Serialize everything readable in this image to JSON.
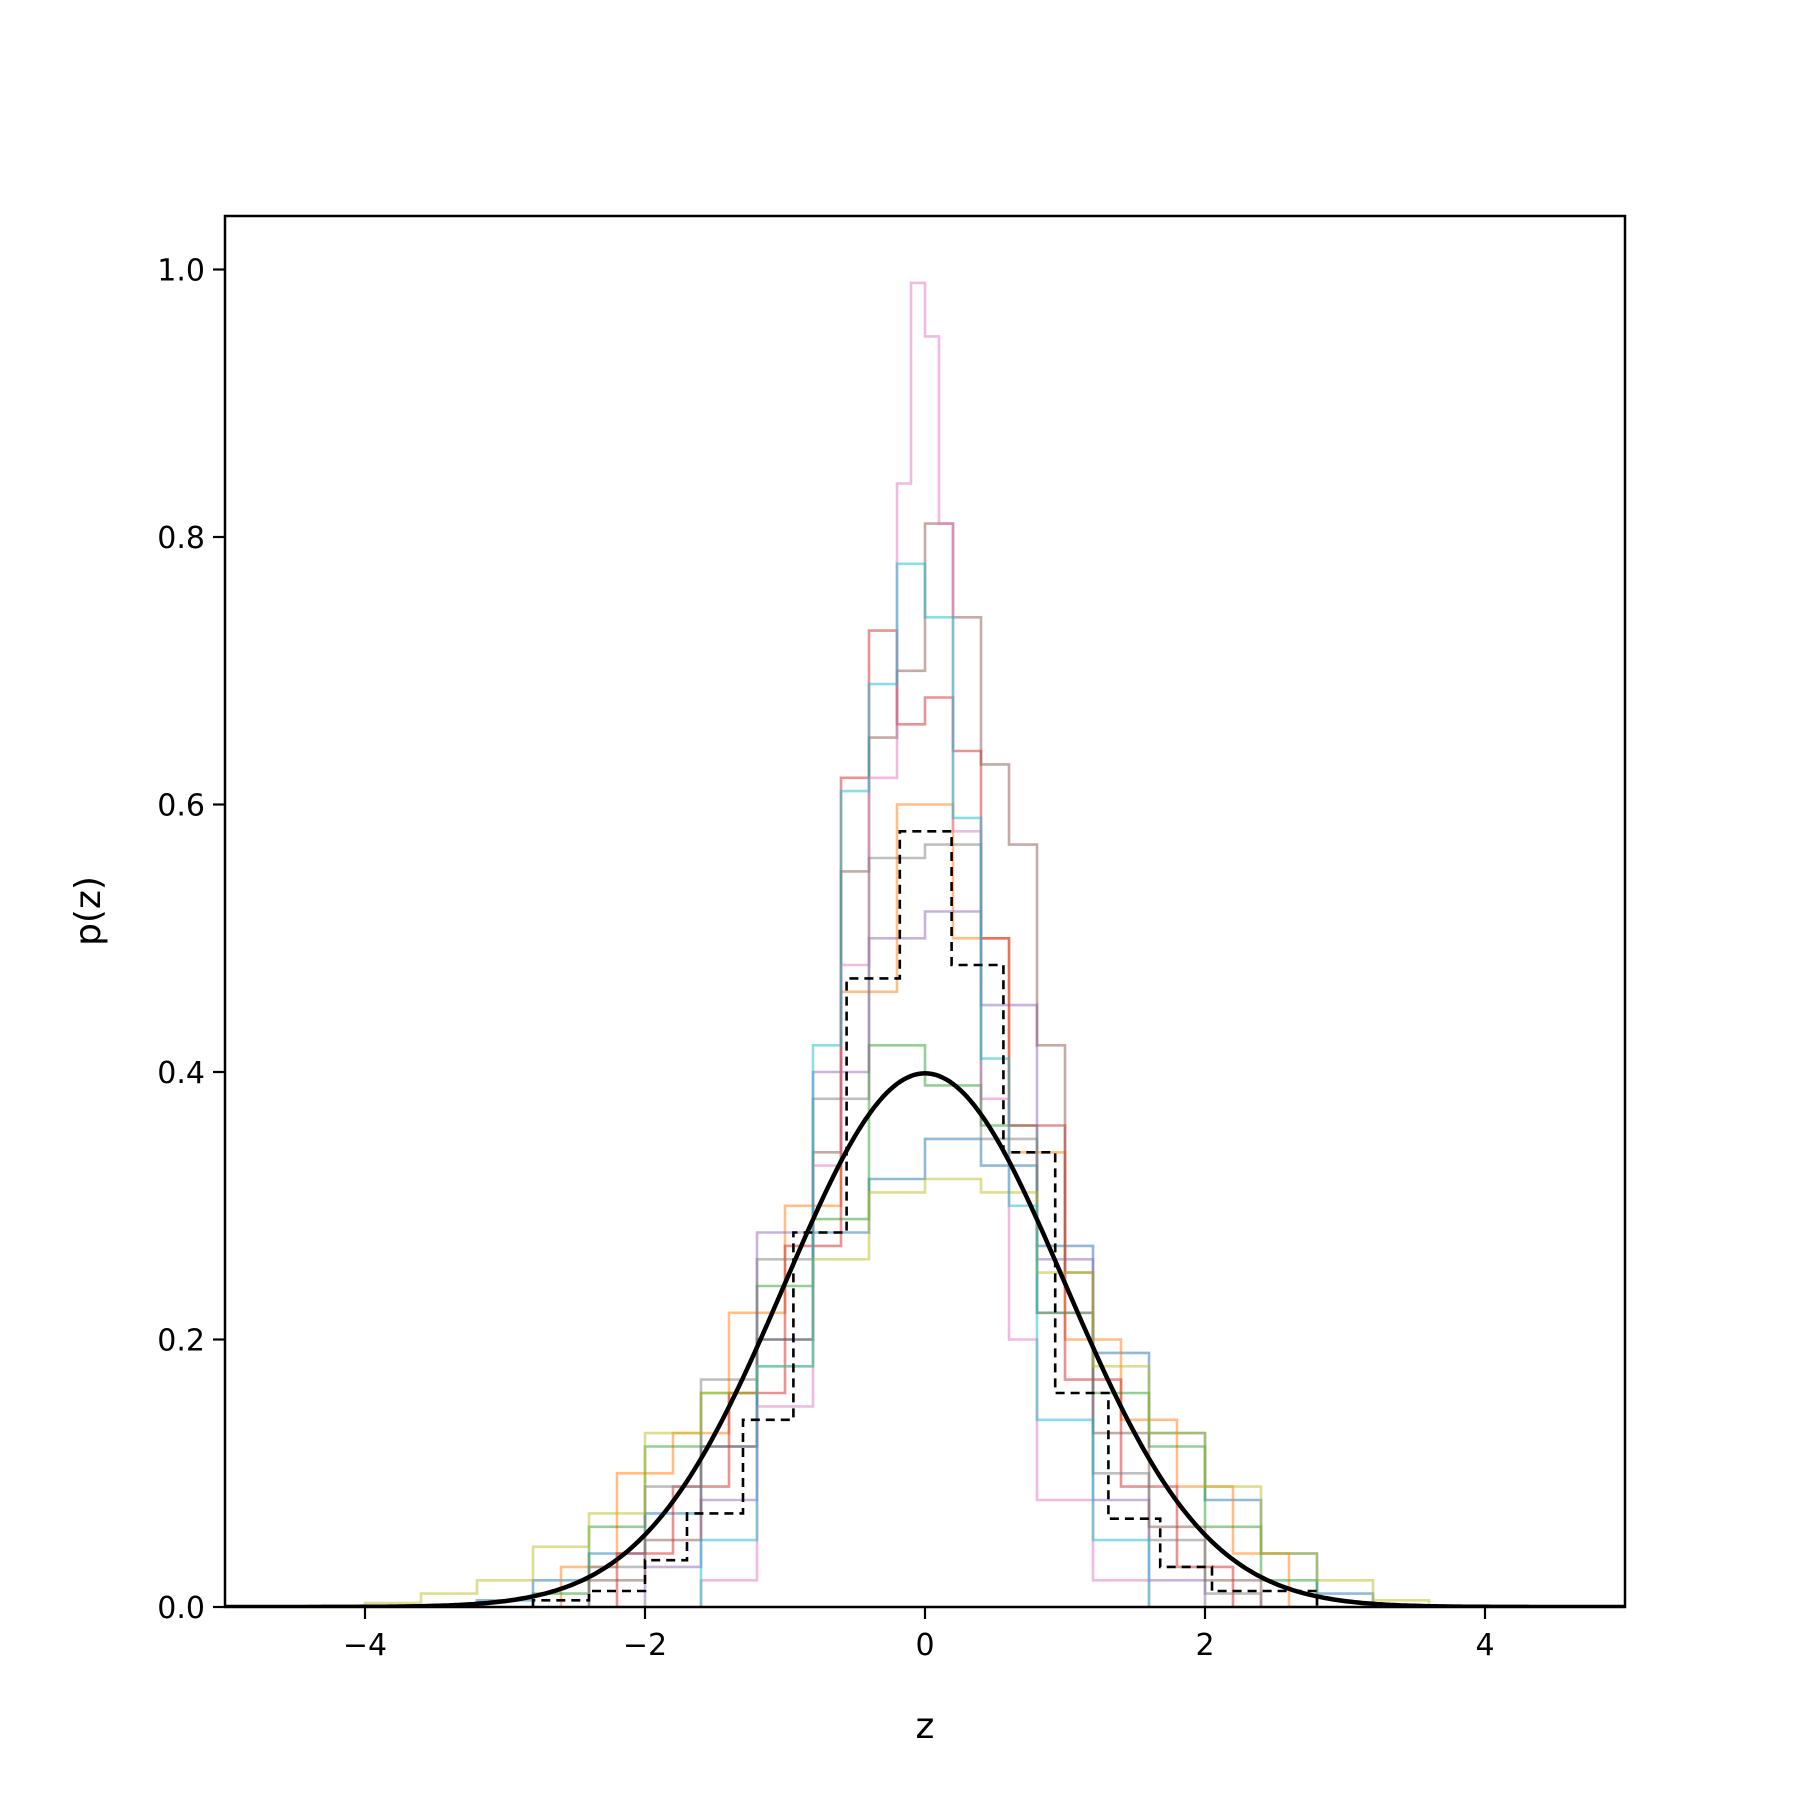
{
  "chart_data": {
    "type": "line",
    "title": "",
    "xlabel": "z",
    "ylabel": "p(z)",
    "xlim": [
      -5,
      5
    ],
    "ylim": [
      0,
      1.04
    ],
    "xticks": [
      -4,
      -2,
      0,
      2,
      4
    ],
    "xtick_labels": [
      "−4",
      "−2",
      "0",
      "2",
      "4"
    ],
    "yticks": [
      0.0,
      0.2,
      0.4,
      0.6,
      0.8,
      1.0
    ],
    "ytick_labels": [
      "0.0",
      "0.2",
      "0.4",
      "0.6",
      "0.8",
      "1.0"
    ],
    "grid": false,
    "legend": "none",
    "histograms": [
      {
        "color": "#1f77b4",
        "edges": [
          -3.2,
          -2.8,
          -2.4,
          -2.0,
          -1.6,
          -1.2,
          -0.8,
          -0.4,
          0.0,
          0.4,
          0.8,
          1.2,
          1.6,
          2.0,
          2.4,
          2.8,
          3.2
        ],
        "values": [
          0.005,
          0.02,
          0.04,
          0.07,
          0.12,
          0.2,
          0.28,
          0.32,
          0.35,
          0.33,
          0.27,
          0.19,
          0.13,
          0.08,
          0.04,
          0.01
        ]
      },
      {
        "color": "#ff7f0e",
        "edges": [
          -2.6,
          -2.2,
          -1.8,
          -1.4,
          -1.0,
          -0.6,
          -0.2,
          0.2,
          0.6,
          1.0,
          1.4,
          1.8,
          2.2,
          2.6
        ],
        "values": [
          0.03,
          0.1,
          0.13,
          0.22,
          0.3,
          0.46,
          0.6,
          0.5,
          0.34,
          0.2,
          0.14,
          0.09,
          0.04
        ]
      },
      {
        "color": "#2ca02c",
        "edges": [
          -2.8,
          -2.4,
          -2.0,
          -1.6,
          -1.2,
          -0.8,
          -0.4,
          0.0,
          0.4,
          0.8,
          1.2,
          1.6,
          2.0,
          2.4,
          2.8
        ],
        "values": [
          0.01,
          0.06,
          0.12,
          0.16,
          0.24,
          0.29,
          0.42,
          0.39,
          0.36,
          0.22,
          0.16,
          0.12,
          0.06,
          0.02
        ]
      },
      {
        "color": "#d62728",
        "edges": [
          -2.2,
          -1.8,
          -1.4,
          -1.0,
          -0.6,
          -0.4,
          -0.2,
          0.0,
          0.2,
          0.4,
          0.6,
          1.0,
          1.4,
          1.8,
          2.2
        ],
        "values": [
          0.04,
          0.09,
          0.16,
          0.27,
          0.62,
          0.73,
          0.66,
          0.68,
          0.64,
          0.5,
          0.36,
          0.17,
          0.09,
          0.03
        ]
      },
      {
        "color": "#9467bd",
        "edges": [
          -2.0,
          -1.6,
          -1.2,
          -0.8,
          -0.4,
          0.0,
          0.4,
          0.8,
          1.2,
          1.6,
          2.0
        ],
        "values": [
          0.03,
          0.08,
          0.28,
          0.4,
          0.5,
          0.52,
          0.45,
          0.26,
          0.08,
          0.02
        ]
      },
      {
        "color": "#8c564b",
        "edges": [
          -2.4,
          -2.0,
          -1.6,
          -1.2,
          -0.8,
          -0.6,
          -0.4,
          -0.2,
          0.0,
          0.2,
          0.4,
          0.6,
          0.8,
          1.0,
          1.2,
          1.6,
          2.0,
          2.4
        ],
        "values": [
          0.02,
          0.05,
          0.12,
          0.2,
          0.34,
          0.55,
          0.65,
          0.7,
          0.81,
          0.74,
          0.63,
          0.57,
          0.42,
          0.25,
          0.13,
          0.06,
          0.02
        ]
      },
      {
        "color": "#e377c2",
        "edges": [
          -1.6,
          -1.2,
          -0.8,
          -0.6,
          -0.4,
          -0.2,
          -0.1,
          0.0,
          0.1,
          0.2,
          0.4,
          0.6,
          0.8,
          1.2,
          1.6
        ],
        "values": [
          0.02,
          0.15,
          0.33,
          0.48,
          0.62,
          0.84,
          0.99,
          0.95,
          0.81,
          0.58,
          0.38,
          0.2,
          0.08,
          0.02
        ]
      },
      {
        "color": "#7f7f7f",
        "edges": [
          -2.4,
          -2.0,
          -1.6,
          -1.2,
          -0.8,
          -0.4,
          0.0,
          0.4,
          0.8,
          1.2,
          1.6,
          2.0,
          2.4
        ],
        "values": [
          0.03,
          0.09,
          0.17,
          0.26,
          0.38,
          0.56,
          0.57,
          0.35,
          0.22,
          0.1,
          0.05,
          0.01
        ]
      },
      {
        "color": "#bcbd22",
        "edges": [
          -4.4,
          -4.0,
          -3.6,
          -3.2,
          -2.8,
          -2.4,
          -2.0,
          -1.6,
          -1.2,
          -0.8,
          -0.4,
          0.0,
          0.4,
          0.8,
          1.2,
          1.6,
          2.0,
          2.4,
          2.8,
          3.2,
          3.6,
          4.0
        ],
        "values": [
          0.001,
          0.003,
          0.01,
          0.02,
          0.045,
          0.07,
          0.13,
          0.16,
          0.18,
          0.26,
          0.31,
          0.32,
          0.31,
          0.25,
          0.18,
          0.13,
          0.09,
          0.04,
          0.02,
          0.005,
          0.001
        ]
      },
      {
        "color": "#17becf",
        "edges": [
          -1.6,
          -1.2,
          -0.8,
          -0.6,
          -0.4,
          -0.2,
          0.0,
          0.2,
          0.4,
          0.6,
          0.8,
          1.2,
          1.6
        ],
        "values": [
          0.05,
          0.18,
          0.42,
          0.61,
          0.69,
          0.78,
          0.74,
          0.59,
          0.41,
          0.3,
          0.14,
          0.05
        ]
      }
    ],
    "dashed_histogram": {
      "color": "#000000",
      "edges": [
        -2.8,
        -2.4,
        -2.0,
        -1.7,
        -1.3,
        -0.94,
        -0.56,
        -0.18,
        0.19,
        0.56,
        0.93,
        1.31,
        1.68,
        2.05,
        2.8
      ],
      "values": [
        0.005,
        0.012,
        0.035,
        0.07,
        0.14,
        0.28,
        0.47,
        0.58,
        0.48,
        0.34,
        0.16,
        0.066,
        0.03,
        0.012
      ]
    },
    "gaussian_curve": {
      "color": "#000000",
      "mean": 0,
      "std": 1,
      "peak": 0.399,
      "x_range": [
        -5,
        5
      ]
    }
  }
}
